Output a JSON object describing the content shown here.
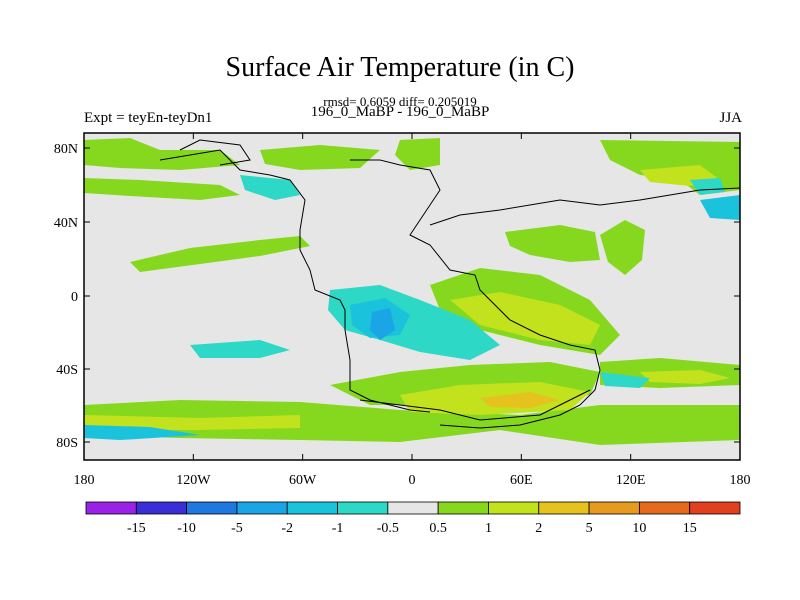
{
  "title": "Surface Air Temperature (in C)",
  "stats": "rmsd= 0.6059 diff= 0.205019",
  "experiment": "Expt = teyEn-teyDn1",
  "subtitle": "196_0_MaBP - 196_0_MaBP",
  "season": "JJA",
  "map": {
    "background_color": "#e6e6e6",
    "lat_labels": [
      "80N",
      "40N",
      "0",
      "40S",
      "80S"
    ],
    "lon_labels": [
      "180",
      "120W",
      "60W",
      "0",
      "60E",
      "120E",
      "180"
    ]
  },
  "colorbar": {
    "colors": [
      "#9a22e6",
      "#3a2fd6",
      "#1e78e0",
      "#1aa5e6",
      "#1ac2dc",
      "#2ed8c6",
      "#e6e6e6",
      "#86d81e",
      "#c2e21e",
      "#e6c21e",
      "#e69a1e",
      "#e66a1e",
      "#e0401e"
    ],
    "labels": [
      "-15",
      "-10",
      "-5",
      "-2",
      "-1",
      "-0.5",
      "0.5",
      "1",
      "2",
      "5",
      "10",
      "15"
    ]
  }
}
